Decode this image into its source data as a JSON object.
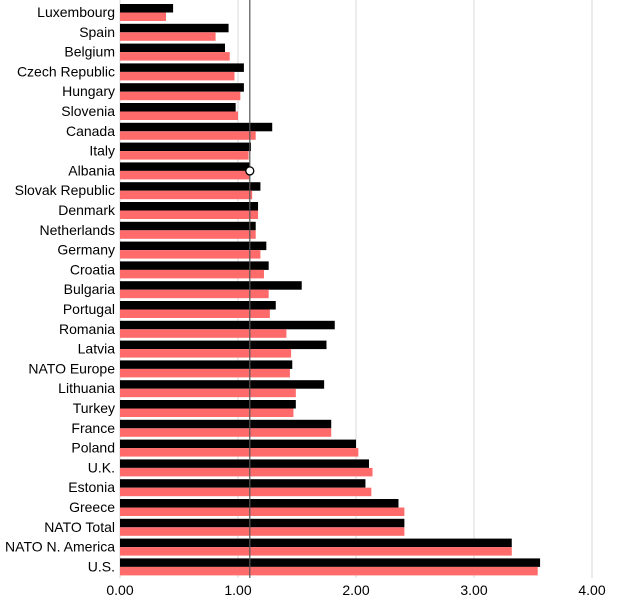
{
  "chart_data": {
    "type": "bar",
    "orientation": "horizontal",
    "categories": [
      "Luxembourg",
      "Spain",
      "Belgium",
      "Czech Republic",
      "Hungary",
      "Slovenia",
      "Canada",
      "Italy",
      "Albania",
      "Slovak Republic",
      "Denmark",
      "Netherlands",
      "Germany",
      "Croatia",
      "Bulgaria",
      "Portugal",
      "Romania",
      "Latvia",
      "NATO Europe",
      "Lithuania",
      "Turkey",
      "France",
      "Poland",
      "U.K.",
      "Estonia",
      "Greece",
      "NATO Total",
      "NATO N. America",
      "U.S."
    ],
    "series": [
      {
        "color": "#000000",
        "values": [
          0.45,
          0.92,
          0.89,
          1.05,
          1.05,
          0.98,
          1.29,
          1.11,
          1.1,
          1.19,
          1.17,
          1.15,
          1.24,
          1.26,
          1.54,
          1.32,
          1.82,
          1.75,
          1.46,
          1.73,
          1.49,
          1.79,
          2.0,
          2.11,
          2.08,
          2.36,
          2.41,
          3.32,
          3.56
        ]
      },
      {
        "color": "#ff6b6b",
        "values": [
          0.39,
          0.81,
          0.93,
          0.97,
          1.02,
          1.0,
          1.15,
          1.09,
          1.1,
          1.12,
          1.17,
          1.15,
          1.19,
          1.22,
          1.26,
          1.27,
          1.41,
          1.45,
          1.44,
          1.49,
          1.47,
          1.79,
          2.02,
          2.14,
          2.13,
          2.41,
          2.41,
          3.32,
          3.54
        ]
      }
    ],
    "xticks": [
      "0.00",
      "1.00",
      "2.00",
      "3.00",
      "4.00"
    ],
    "xlim": [
      0,
      4
    ],
    "reference_line": 1.1,
    "grid": true,
    "legend": "none"
  }
}
